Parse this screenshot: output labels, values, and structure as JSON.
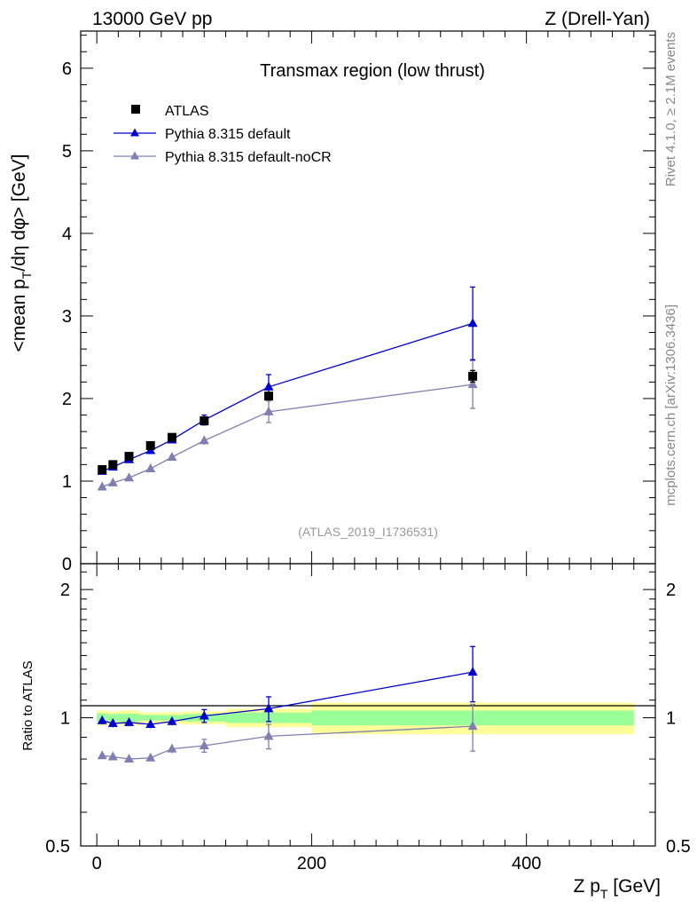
{
  "header": {
    "left": "13000 GeV pp",
    "right": "Z (Drell-Yan)"
  },
  "side_text": {
    "rivet": "Rivet 4.1.0, ≥ 2.1M events",
    "mcplots": "mcplots.cern.ch [arXiv:1306.3436]"
  },
  "colors": {
    "atlas": "#000000",
    "default": "#0000cc",
    "nocr": "#7f7fb2",
    "band_inner": "#99ff99",
    "band_outer": "#ffff99",
    "analysis_id": "#999999"
  },
  "chart_data": [
    {
      "id": "main",
      "type": "scatter",
      "title": "Transmax region (low thrust)",
      "xlabel": "",
      "ylabel": "<mean p_T/dη dφ> [GeV]",
      "ylabel_parts": {
        "pre": "<mean p",
        "sub": "T",
        "post": "/dη dφ> [GeV]"
      },
      "xlim": [
        -15,
        520
      ],
      "ylim": [
        0,
        6.45
      ],
      "y_ticks": [
        0,
        1,
        2,
        3,
        4,
        5,
        6
      ],
      "y_tick_labels": [
        "0",
        "1",
        "2",
        "3",
        "4",
        "5",
        "6"
      ],
      "analysis_id": "(ATLAS_2019_I1736531)",
      "legend_position": "top-left",
      "series": [
        {
          "name": "ATLAS",
          "marker": "square",
          "line": false,
          "x": [
            5,
            15,
            30,
            50,
            70,
            100,
            160,
            350
          ],
          "y": [
            1.14,
            1.2,
            1.3,
            1.43,
            1.53,
            1.73,
            2.03,
            2.27
          ],
          "yerr": [
            0.02,
            0.02,
            0.02,
            0.02,
            0.02,
            0.03,
            0.05,
            0.07
          ]
        },
        {
          "name": "Pythia 8.315 default",
          "marker": "triangle",
          "line": true,
          "x": [
            5,
            15,
            30,
            50,
            70,
            100,
            160,
            350
          ],
          "y": [
            1.12,
            1.17,
            1.26,
            1.37,
            1.5,
            1.74,
            2.14,
            2.91
          ],
          "yerr": [
            0.02,
            0.02,
            0.03,
            0.03,
            0.03,
            0.06,
            0.15,
            0.44
          ]
        },
        {
          "name": "Pythia 8.315 default-noCR",
          "marker": "triangle",
          "line": true,
          "x": [
            5,
            15,
            30,
            50,
            70,
            100,
            160,
            350
          ],
          "y": [
            0.93,
            0.98,
            1.04,
            1.15,
            1.29,
            1.49,
            1.84,
            2.17
          ],
          "yerr": [
            0.02,
            0.02,
            0.02,
            0.02,
            0.03,
            0.05,
            0.13,
            0.29
          ]
        }
      ]
    },
    {
      "id": "ratio",
      "type": "scatter",
      "title": "",
      "xlabel": "Z p_T [GeV]",
      "xlabel_parts": {
        "pre": "Z p",
        "sub": "T",
        "post": " [GeV]"
      },
      "ylabel": "Ratio to ATLAS",
      "ylim": [
        0.5,
        2.3
      ],
      "y_scale": "log",
      "xlim": [
        -15,
        520
      ],
      "x_ticks": [
        0,
        200,
        400
      ],
      "x_tick_labels": [
        "0",
        "200",
        "400"
      ],
      "y_ticks": [
        0.5,
        1,
        2
      ],
      "y_tick_labels": [
        "0.5",
        "1",
        "2"
      ],
      "bands": {
        "edges": [
          0,
          10,
          20,
          40,
          60,
          80,
          120,
          200,
          500
        ],
        "inner": [
          0.025,
          0.02,
          0.022,
          0.015,
          0.015,
          0.02,
          0.028,
          0.04
        ],
        "outer": [
          0.04,
          0.035,
          0.04,
          0.028,
          0.03,
          0.035,
          0.05,
          0.085
        ]
      },
      "series": [
        {
          "name": "Pythia 8.315 default",
          "x": [
            5,
            15,
            30,
            50,
            70,
            100,
            160,
            350
          ],
          "y": [
            0.985,
            0.97,
            0.975,
            0.965,
            0.98,
            1.01,
            1.05,
            1.28
          ],
          "yerr": [
            0.02,
            0.02,
            0.02,
            0.02,
            0.02,
            0.035,
            0.07,
            0.19
          ]
        },
        {
          "name": "Pythia 8.315 default-noCR",
          "x": [
            5,
            15,
            30,
            50,
            70,
            100,
            160,
            350
          ],
          "y": [
            0.815,
            0.81,
            0.8,
            0.805,
            0.845,
            0.86,
            0.905,
            0.955
          ],
          "yerr": [
            0.015,
            0.015,
            0.015,
            0.015,
            0.02,
            0.03,
            0.06,
            0.12
          ]
        }
      ]
    }
  ]
}
